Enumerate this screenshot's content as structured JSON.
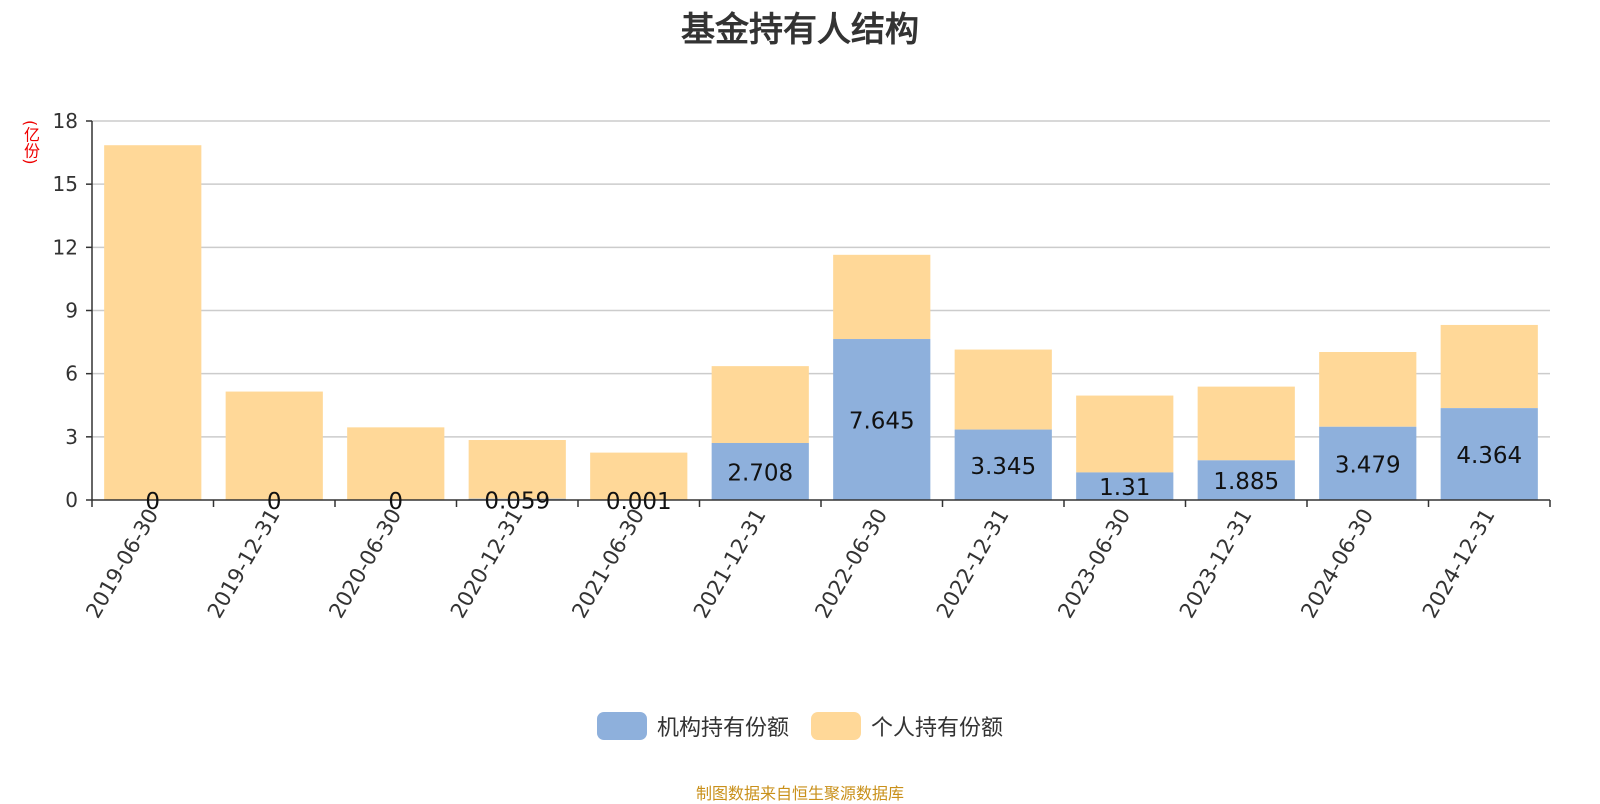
{
  "title": "基金持有人结构",
  "unit_label": "(亿份)",
  "source": "制图数据来自恒生聚源数据库",
  "colors": {
    "institution": "#8eb0dc",
    "individual": "#ffd898",
    "grid": "#cccccc",
    "axis": "#333333"
  },
  "chart_data": {
    "type": "bar",
    "stacked": true,
    "title": "基金持有人结构",
    "ylabel": "(亿份)",
    "ylim": [
      0,
      18
    ],
    "yticks": [
      0,
      3,
      6,
      9,
      12,
      15,
      18
    ],
    "grid": true,
    "legend_position": "bottom",
    "categories": [
      "2019-06-30",
      "2019-12-31",
      "2020-06-30",
      "2020-12-31",
      "2021-06-30",
      "2021-12-31",
      "2022-06-30",
      "2022-12-31",
      "2023-06-30",
      "2023-12-31",
      "2024-06-30",
      "2024-12-31"
    ],
    "series": [
      {
        "name": "机构持有份额",
        "color": "#8eb0dc",
        "values": [
          0,
          0,
          0,
          0.059,
          0.001,
          2.708,
          7.645,
          3.345,
          1.31,
          1.885,
          3.479,
          4.364
        ],
        "labels": [
          "0",
          "0",
          "0",
          "0.059",
          "0.001",
          "2.708",
          "7.645",
          "3.345",
          "1.31",
          "1.885",
          "3.479",
          "4.364"
        ]
      },
      {
        "name": "个人持有份额",
        "color": "#ffd898",
        "values": [
          16.85,
          5.15,
          3.45,
          2.79,
          2.25,
          3.65,
          4.0,
          3.8,
          3.65,
          3.5,
          3.55,
          3.95
        ]
      }
    ]
  }
}
